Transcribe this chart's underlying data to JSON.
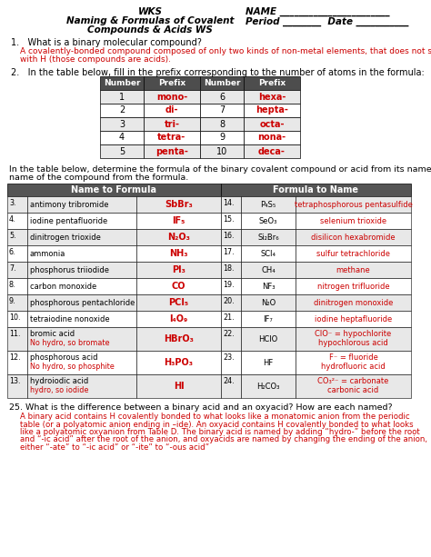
{
  "red_color": "#CC0000",
  "black_color": "#000000",
  "bg_color": "#FFFFFF",
  "header_bg": "#555555",
  "header_text": "#FFFFFF",
  "prefix_table": {
    "headers": [
      "Number",
      "Prefix",
      "Number",
      "Prefix"
    ],
    "rows": [
      [
        "1",
        "mono-",
        "6",
        "hexa-"
      ],
      [
        "2",
        "di-",
        "7",
        "hepta-"
      ],
      [
        "3",
        "tri-",
        "8",
        "octa-"
      ],
      [
        "4",
        "tetra-",
        "9",
        "nona-"
      ],
      [
        "5",
        "penta-",
        "10",
        "deca-"
      ]
    ]
  },
  "main_rows": [
    {
      "num_l": "3.",
      "name_l": "antimony tribromide",
      "name_l2": "",
      "formula_l": "SbBr₃",
      "num_r": "14.",
      "formula_r": "P₄S₅",
      "name_r": "tetraphosphorous pentasulfide",
      "name_r2": ""
    },
    {
      "num_l": "4.",
      "name_l": "iodine pentafluoride",
      "name_l2": "",
      "formula_l": "IF₅",
      "num_r": "15.",
      "formula_r": "SeO₃",
      "name_r": "selenium trioxide",
      "name_r2": ""
    },
    {
      "num_l": "5.",
      "name_l": "dinitrogen trioxide",
      "name_l2": "",
      "formula_l": "N₂O₃",
      "num_r": "16.",
      "formula_r": "Si₂Br₆",
      "name_r": "disilicon hexabromide",
      "name_r2": ""
    },
    {
      "num_l": "6.",
      "name_l": "ammonia",
      "name_l2": "",
      "formula_l": "NH₃",
      "num_r": "17.",
      "formula_r": "SCl₄",
      "name_r": "sulfur tetrachloride",
      "name_r2": ""
    },
    {
      "num_l": "7.",
      "name_l": "phosphorus triiodide",
      "name_l2": "",
      "formula_l": "PI₃",
      "num_r": "18.",
      "formula_r": "CH₄",
      "name_r": "methane",
      "name_r2": ""
    },
    {
      "num_l": "8.",
      "name_l": "carbon monoxide",
      "name_l2": "",
      "formula_l": "CO",
      "num_r": "19.",
      "formula_r": "NF₃",
      "name_r": "nitrogen trifluoride",
      "name_r2": ""
    },
    {
      "num_l": "9.",
      "name_l": "phosphorous pentachloride",
      "name_l2": "",
      "formula_l": "PCl₅",
      "num_r": "20.",
      "formula_r": "N₂O",
      "name_r": "dinitrogen monoxide",
      "name_r2": ""
    },
    {
      "num_l": "10.",
      "name_l": "tetraiodine nonoxide",
      "name_l2": "",
      "formula_l": "I₄O₉",
      "num_r": "21.",
      "formula_r": "IF₇",
      "name_r": "iodine heptafluoride",
      "name_r2": ""
    },
    {
      "num_l": "11.",
      "name_l": "bromic acid",
      "name_l2": "No hydro, so bromate",
      "formula_l": "HBrO₃",
      "num_r": "22.",
      "formula_r": "HClO",
      "name_r": "ClO⁻ = hypochlorite",
      "name_r2": "hypochlorous acid"
    },
    {
      "num_l": "12.",
      "name_l": "phosphorous acid",
      "name_l2": "No hydro, so phosphite",
      "formula_l": "H₃PO₃",
      "num_r": "23.",
      "formula_r": "HF",
      "name_r": "F⁻ = fluoride",
      "name_r2": "hydrofluoric acid"
    },
    {
      "num_l": "13.",
      "name_l": "hydroiodic acid",
      "name_l2": "hydro, so iodide",
      "formula_l": "HI",
      "num_r": "24.",
      "formula_r": "H₂CO₃",
      "name_r": "CO₃²⁻ = carbonate",
      "name_r2": "carbonic acid"
    }
  ],
  "q25_answer": [
    "A binary acid contains H covalently bonded to what looks like a monatomic anion from the periodic",
    "table (or a polyatomic anion ending in –ide). An oxyacid contains H covalently bonded to what looks",
    "like a polyatomic oxyanion from Table D. The binary acid is named by adding “hydro-” before the root",
    "and “-ic acid” after the root of the anion, and oxyacids are named by changing the ending of the anion,",
    "either “-ate” to “-ic acid” or “-ite” to “-ous acid”"
  ]
}
